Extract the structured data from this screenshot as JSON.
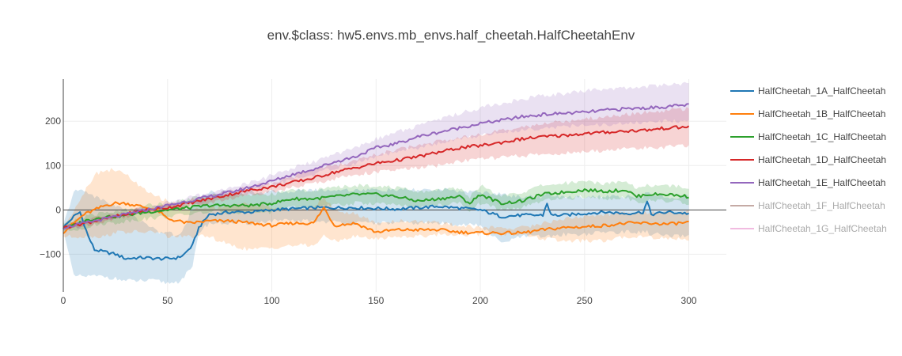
{
  "chart_data": {
    "type": "line",
    "title": "env.$class: hw5.envs.mb_envs.half_cheetah.HalfCheetahEnv",
    "xlabel": "",
    "ylabel": "",
    "xlim": [
      0,
      318
    ],
    "ylim": [
      -185,
      295
    ],
    "x_ticks": [
      0,
      50,
      100,
      150,
      200,
      250,
      300
    ],
    "y_ticks": [
      -100,
      0,
      100,
      200
    ],
    "y_tick_labels": [
      "−100",
      "0",
      "100",
      "200"
    ],
    "grid": true,
    "legend_position": "right",
    "shaded_band": "min-max range across runs",
    "series": [
      {
        "name": "HalfCheetah_1A_HalfCheetah",
        "color": "#1f77b4",
        "visible": true,
        "x": [
          0,
          5,
          8,
          12,
          15,
          20,
          25,
          30,
          35,
          40,
          45,
          50,
          55,
          58,
          62,
          65,
          70,
          75,
          80,
          90,
          100,
          120,
          140,
          160,
          180,
          200,
          210,
          220,
          230,
          232,
          234,
          240,
          250,
          260,
          270,
          278,
          280,
          282,
          285,
          290,
          300
        ],
        "y": [
          -40,
          -15,
          -5,
          -60,
          -90,
          -95,
          -100,
          -110,
          -108,
          -108,
          -110,
          -110,
          -108,
          -100,
          -80,
          -40,
          -10,
          -8,
          -5,
          -5,
          0,
          5,
          5,
          2,
          8,
          0,
          -15,
          -12,
          -12,
          15,
          -12,
          -12,
          -8,
          -5,
          -8,
          -5,
          18,
          -10,
          -8,
          -5,
          -8
        ],
        "band_low": [
          -40,
          -150,
          -150,
          -150,
          -150,
          -150,
          -155,
          -160,
          -160,
          -160,
          -160,
          -165,
          -162,
          -150,
          -130,
          -50,
          -30,
          -30,
          -30,
          -30,
          -25,
          -25,
          -30,
          -30,
          -30,
          -35,
          -75,
          -60,
          -60,
          -60,
          -60,
          -55,
          -55,
          -50,
          -50,
          -50,
          -50,
          -55,
          -55,
          -60,
          -60
        ],
        "band_high": [
          -35,
          40,
          45,
          40,
          30,
          20,
          10,
          0,
          -20,
          -30,
          -50,
          -50,
          -60,
          -40,
          10,
          30,
          40,
          40,
          40,
          40,
          40,
          45,
          45,
          45,
          45,
          40,
          35,
          30,
          30,
          40,
          30,
          30,
          30,
          30,
          30,
          30,
          40,
          30,
          30,
          30,
          30
        ]
      },
      {
        "name": "HalfCheetah_1B_HalfCheetah",
        "color": "#ff7f0e",
        "visible": true,
        "x": [
          0,
          5,
          10,
          15,
          20,
          25,
          30,
          35,
          40,
          45,
          50,
          55,
          60,
          70,
          80,
          90,
          100,
          110,
          120,
          125,
          130,
          140,
          150,
          160,
          170,
          180,
          190,
          200,
          210,
          220,
          230,
          240,
          250,
          260,
          270,
          280,
          290,
          300
        ],
        "y": [
          -50,
          -30,
          -10,
          0,
          10,
          15,
          15,
          10,
          5,
          0,
          -20,
          -25,
          -30,
          -25,
          -25,
          -30,
          -35,
          -30,
          -30,
          5,
          -35,
          -30,
          -50,
          -45,
          -45,
          -45,
          -50,
          -52,
          -52,
          -52,
          -45,
          -40,
          -38,
          -35,
          -30,
          -30,
          -32,
          -28
        ],
        "band_low": [
          -60,
          -60,
          -60,
          -60,
          -60,
          -50,
          -50,
          -50,
          -50,
          -50,
          -60,
          -60,
          -60,
          -60,
          -80,
          -90,
          -85,
          -80,
          -80,
          -60,
          -70,
          -60,
          -65,
          -60,
          -60,
          -55,
          -55,
          -55,
          -55,
          -55,
          -65,
          -70,
          -70,
          -70,
          -60,
          -60,
          -65,
          -65
        ],
        "band_high": [
          -40,
          0,
          40,
          80,
          90,
          90,
          80,
          60,
          40,
          30,
          20,
          10,
          0,
          5,
          10,
          15,
          5,
          0,
          5,
          30,
          0,
          -10,
          -30,
          -25,
          -25,
          -30,
          -35,
          -40,
          -40,
          -40,
          -30,
          -20,
          -15,
          -10,
          -5,
          -5,
          -5,
          -5
        ]
      },
      {
        "name": "HalfCheetah_1C_HalfCheetah",
        "color": "#2ca02c",
        "visible": true,
        "x": [
          0,
          5,
          10,
          15,
          20,
          25,
          30,
          40,
          50,
          60,
          70,
          80,
          90,
          100,
          110,
          120,
          130,
          140,
          150,
          160,
          170,
          180,
          190,
          195,
          200,
          210,
          220,
          230,
          240,
          250,
          260,
          270,
          275,
          280,
          290,
          300
        ],
        "y": [
          -40,
          -35,
          -25,
          -20,
          -15,
          -15,
          -12,
          -5,
          0,
          5,
          10,
          10,
          10,
          15,
          25,
          25,
          30,
          35,
          35,
          30,
          20,
          25,
          30,
          15,
          35,
          15,
          20,
          35,
          40,
          45,
          42,
          45,
          30,
          35,
          35,
          30
        ],
        "band_low": [
          -50,
          -45,
          -40,
          -35,
          -30,
          -30,
          -25,
          -20,
          -15,
          -10,
          -5,
          -5,
          -5,
          -5,
          5,
          5,
          10,
          15,
          15,
          10,
          5,
          10,
          15,
          0,
          15,
          0,
          5,
          20,
          25,
          30,
          25,
          30,
          15,
          20,
          20,
          15
        ],
        "band_high": [
          -30,
          -25,
          -15,
          -10,
          -5,
          -5,
          0,
          10,
          15,
          25,
          30,
          35,
          35,
          35,
          45,
          45,
          50,
          55,
          55,
          50,
          40,
          45,
          50,
          30,
          55,
          30,
          40,
          55,
          60,
          65,
          60,
          65,
          50,
          55,
          55,
          50
        ]
      },
      {
        "name": "HalfCheetah_1D_HalfCheetah",
        "color": "#d62728",
        "visible": true,
        "x": [
          0,
          10,
          20,
          30,
          40,
          50,
          60,
          70,
          80,
          90,
          100,
          110,
          120,
          130,
          140,
          150,
          160,
          170,
          180,
          190,
          200,
          210,
          220,
          230,
          240,
          250,
          260,
          270,
          280,
          290,
          300
        ],
        "y": [
          -40,
          -30,
          -20,
          -10,
          0,
          5,
          15,
          25,
          35,
          45,
          52,
          62,
          72,
          85,
          95,
          105,
          112,
          120,
          130,
          140,
          145,
          152,
          160,
          165,
          168,
          172,
          175,
          178,
          180,
          185,
          187
        ],
        "band_low": [
          -45,
          -35,
          -25,
          -15,
          -5,
          0,
          8,
          15,
          25,
          35,
          42,
          50,
          60,
          70,
          80,
          85,
          90,
          95,
          100,
          110,
          115,
          118,
          122,
          125,
          128,
          130,
          135,
          138,
          140,
          142,
          145
        ],
        "band_high": [
          -35,
          -25,
          -15,
          -5,
          5,
          12,
          22,
          32,
          42,
          52,
          62,
          75,
          90,
          100,
          110,
          125,
          135,
          145,
          155,
          165,
          170,
          178,
          185,
          195,
          200,
          205,
          210,
          215,
          220,
          225,
          228
        ]
      },
      {
        "name": "HalfCheetah_1E_HalfCheetah",
        "color": "#9467bd",
        "visible": true,
        "x": [
          0,
          10,
          20,
          30,
          40,
          50,
          60,
          70,
          80,
          90,
          100,
          110,
          120,
          130,
          140,
          150,
          160,
          170,
          180,
          190,
          200,
          210,
          220,
          230,
          240,
          250,
          260,
          270,
          280,
          290,
          300
        ],
        "y": [
          -40,
          -30,
          -20,
          -10,
          0,
          10,
          20,
          30,
          40,
          52,
          65,
          80,
          92,
          108,
          120,
          140,
          150,
          165,
          175,
          185,
          195,
          202,
          210,
          215,
          218,
          220,
          225,
          228,
          230,
          233,
          237
        ],
        "band_low": [
          -45,
          -35,
          -25,
          -15,
          -5,
          5,
          14,
          22,
          32,
          42,
          55,
          68,
          80,
          95,
          105,
          120,
          130,
          140,
          150,
          160,
          168,
          175,
          180,
          185,
          188,
          190,
          192,
          195,
          197,
          200,
          202
        ],
        "band_high": [
          -35,
          -25,
          -15,
          -5,
          5,
          16,
          27,
          38,
          50,
          62,
          78,
          95,
          108,
          125,
          140,
          160,
          175,
          190,
          205,
          218,
          230,
          240,
          250,
          258,
          262,
          268,
          272,
          275,
          278,
          282,
          285
        ]
      },
      {
        "name": "HalfCheetah_1F_HalfCheetah",
        "color": "#8c564b",
        "visible": false,
        "x": [],
        "y": []
      },
      {
        "name": "HalfCheetah_1G_HalfCheetah",
        "color": "#e377c2",
        "visible": false,
        "x": [],
        "y": []
      }
    ]
  }
}
